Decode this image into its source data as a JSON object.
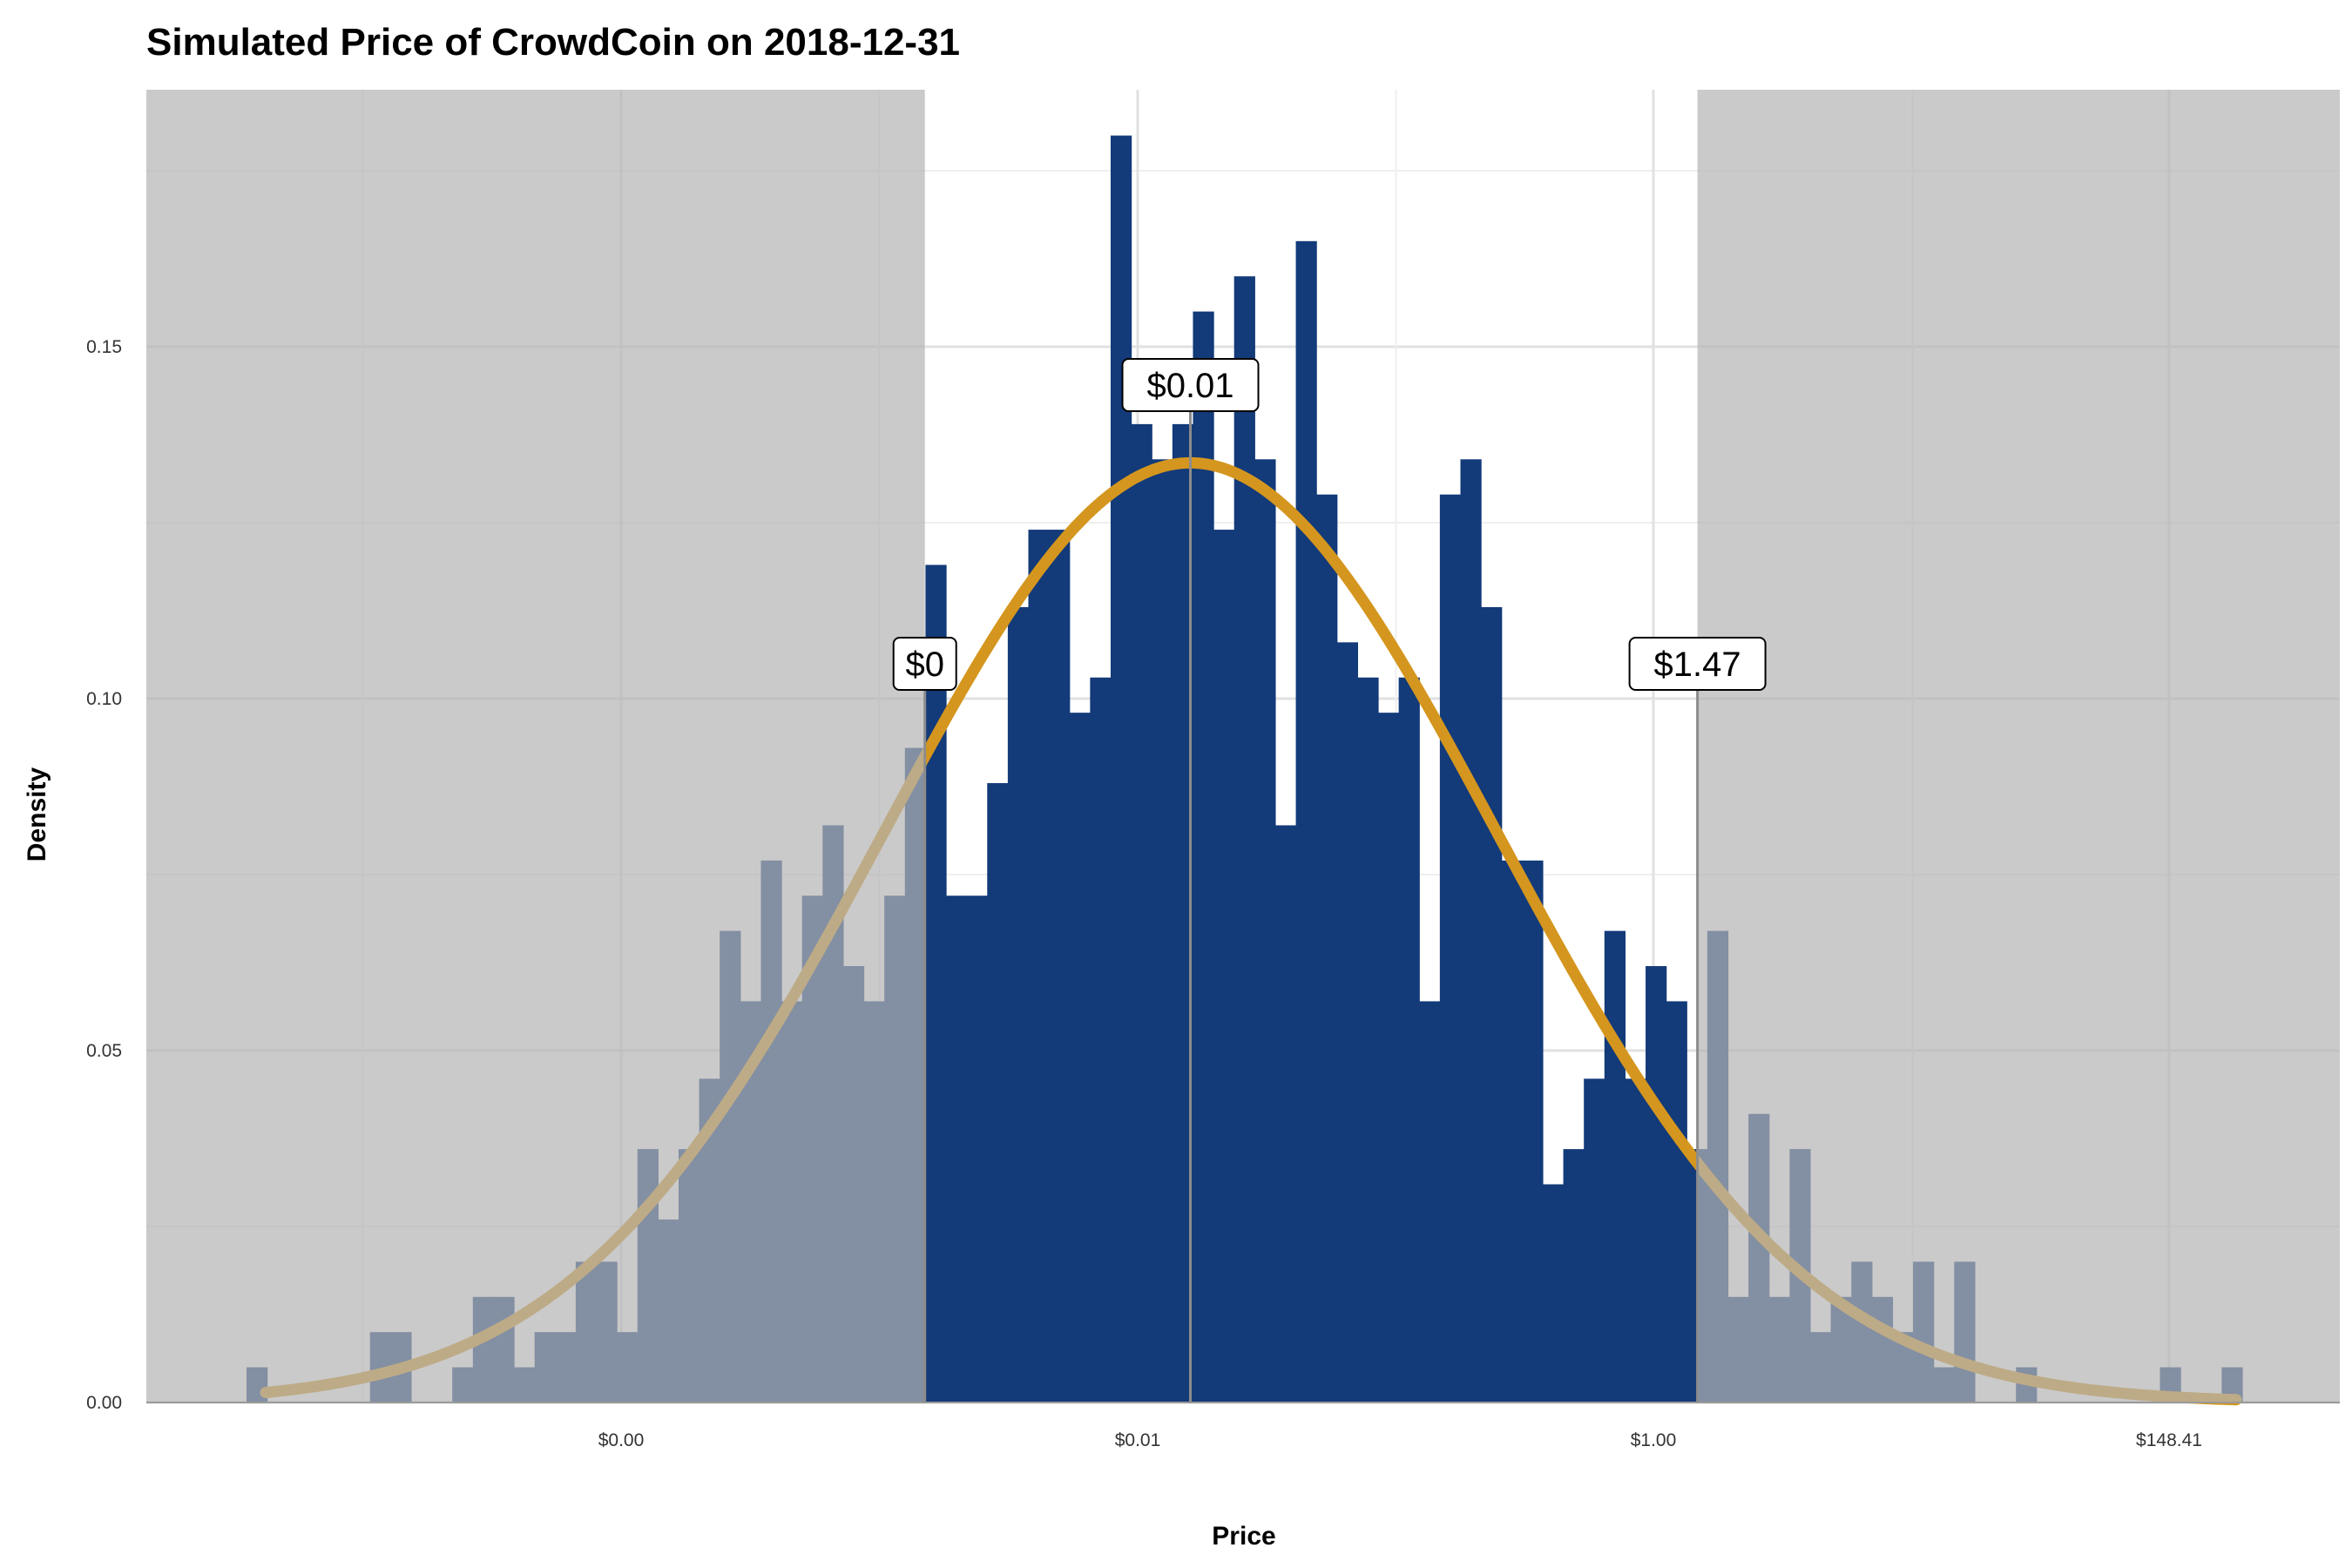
{
  "chart_data": {
    "type": "bar",
    "title": "Simulated Price of CrowdCoin on 2018-12-31",
    "xlabel": "Price",
    "ylabel": "Density",
    "x_scale": "log",
    "x_ticks": [
      {
        "value": 0.0004,
        "label": "$0.00"
      },
      {
        "value": 0.01,
        "label": "$0.01"
      },
      {
        "value": 1.0,
        "label": "$1.00"
      },
      {
        "value": 148.41,
        "label": "$148.41"
      }
    ],
    "ylim": [
      0,
      0.18
    ],
    "y_ticks": [
      {
        "value": 0.0,
        "label": "0.00"
      },
      {
        "value": 0.05,
        "label": "0.05"
      },
      {
        "value": 0.1,
        "label": "0.10"
      },
      {
        "value": 0.15,
        "label": "0.15"
      }
    ],
    "grid": true,
    "shaded_regions": [
      "below $0",
      "above $1.47"
    ],
    "colors": {
      "bars": "#133a79",
      "curve": "#d4961e",
      "shade": "#b3b3b3"
    },
    "histogram_density": [
      0.005,
      0,
      0,
      0,
      0,
      0,
      0.01,
      0.01,
      0,
      0,
      0.005,
      0.015,
      0.015,
      0.005,
      0.01,
      0.01,
      0.02,
      0.02,
      0.01,
      0.036,
      0.026,
      0.036,
      0.046,
      0.067,
      0.057,
      0.077,
      0.057,
      0.072,
      0.082,
      0.062,
      0.057,
      0.072,
      0.093,
      0.119,
      0.072,
      0.072,
      0.088,
      0.113,
      0.124,
      0.124,
      0.098,
      0.103,
      0.18,
      0.139,
      0.134,
      0.139,
      0.155,
      0.124,
      0.16,
      0.134,
      0.082,
      0.165,
      0.129,
      0.108,
      0.103,
      0.098,
      0.103,
      0.057,
      0.129,
      0.134,
      0.113,
      0.077,
      0.077,
      0.031,
      0.036,
      0.046,
      0.067,
      0.046,
      0.062,
      0.057,
      0.036,
      0.067,
      0.015,
      0.041,
      0.015,
      0.036,
      0.01,
      0.015,
      0.02,
      0.015,
      0.01,
      0.02,
      0.005,
      0.02,
      0,
      0,
      0.005,
      0,
      0,
      0,
      0,
      0,
      0,
      0.005,
      0,
      0,
      0.005
    ],
    "fitted_curve": "normal density on log price",
    "annotations": [
      {
        "label": "$0",
        "value": 0.0015
      },
      {
        "label": "$0.01",
        "value": 0.016
      },
      {
        "label": "$1.47",
        "value": 1.47
      }
    ]
  }
}
